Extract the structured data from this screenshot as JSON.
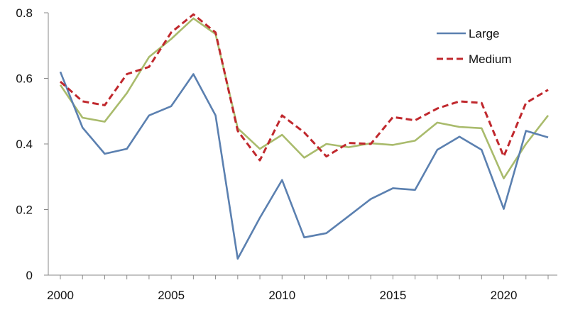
{
  "chart_data": {
    "type": "line",
    "title": "",
    "xlabel": "",
    "ylabel": "",
    "xlim": [
      2000,
      2022
    ],
    "ylim": [
      0,
      0.8
    ],
    "x_ticks": [
      2000,
      2005,
      2010,
      2015,
      2020
    ],
    "y_ticks": [
      0,
      0.2,
      0.4,
      0.6,
      0.8
    ],
    "x_tick_labels": [
      "2000",
      "2005",
      "2010",
      "2015",
      "2020"
    ],
    "y_tick_labels": [
      "0",
      "0.2",
      "0.4",
      "0.6",
      "0.8"
    ],
    "grid": false,
    "legend_position": "top-right",
    "x": [
      2000,
      2001,
      2002,
      2003,
      2004,
      2005,
      2006,
      2007,
      2008,
      2009,
      2010,
      2011,
      2012,
      2013,
      2014,
      2015,
      2016,
      2017,
      2018,
      2019,
      2020,
      2021,
      2022
    ],
    "series": [
      {
        "name": "Large",
        "color": "#5b80b0",
        "dash": "solid",
        "values": [
          0.62,
          0.45,
          0.37,
          0.385,
          0.487,
          0.515,
          0.613,
          0.487,
          0.05,
          0.175,
          0.29,
          0.115,
          0.128,
          0.18,
          0.232,
          0.265,
          0.26,
          0.382,
          0.422,
          0.382,
          0.202,
          0.44,
          0.42
        ]
      },
      {
        "name": "Medium",
        "color": "#c0282d",
        "dash": "dashed",
        "values": [
          0.59,
          0.53,
          0.518,
          0.613,
          0.635,
          0.74,
          0.795,
          0.74,
          0.44,
          0.35,
          0.487,
          0.435,
          0.362,
          0.403,
          0.4,
          0.482,
          0.472,
          0.508,
          0.53,
          0.525,
          0.362,
          0.525,
          0.565
        ]
      },
      {
        "name": "",
        "color": "#a9bb6c",
        "dash": "solid",
        "values": [
          0.58,
          0.48,
          0.468,
          0.555,
          0.665,
          0.72,
          0.783,
          0.735,
          0.448,
          0.385,
          0.428,
          0.358,
          0.4,
          0.39,
          0.402,
          0.397,
          0.41,
          0.465,
          0.452,
          0.448,
          0.295,
          0.4,
          0.487
        ]
      }
    ]
  }
}
